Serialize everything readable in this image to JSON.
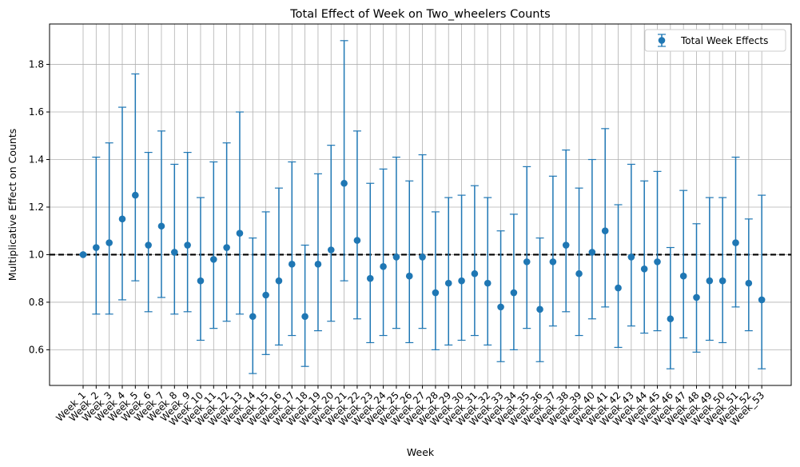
{
  "chart_data": {
    "type": "errorbar",
    "title": "Total Effect of Week on Two_wheelers Counts",
    "xlabel": "Week",
    "ylabel": "Multiplicative Effect on Counts",
    "ylim": [
      0.45,
      1.97
    ],
    "yticks": [
      0.6,
      0.8,
      1.0,
      1.2,
      1.4,
      1.6,
      1.8
    ],
    "ytick_labels": [
      "0.6",
      "0.8",
      "1.0",
      "1.2",
      "1.4",
      "1.6",
      "1.8"
    ],
    "grid": true,
    "legend": {
      "placement": "top-right",
      "entries": [
        "Total Week Effects"
      ]
    },
    "reference_line": {
      "y": 1.0,
      "style": "dashed",
      "color": "#000000"
    },
    "colors": {
      "series": "#1f77b4"
    },
    "categories": [
      "Week_1",
      "Week_2",
      "Week_3",
      "Week_4",
      "Week_5",
      "Week_6",
      "Week_7",
      "Week_8",
      "Week_9",
      "Week_10",
      "Week_11",
      "Week_12",
      "Week_13",
      "Week_14",
      "Week_15",
      "Week_16",
      "Week_17",
      "Week_18",
      "Week_19",
      "Week_20",
      "Week_21",
      "Week_22",
      "Week_23",
      "Week_24",
      "Week_25",
      "Week_26",
      "Week_27",
      "Week_28",
      "Week_29",
      "Week_30",
      "Week_31",
      "Week_32",
      "Week_33",
      "Week_34",
      "Week_35",
      "Week_36",
      "Week_37",
      "Week_38",
      "Week_39",
      "Week_40",
      "Week_41",
      "Week_42",
      "Week_43",
      "Week_44",
      "Week_45",
      "Week_46",
      "Week_47",
      "Week_48",
      "Week_49",
      "Week_50",
      "Week_51",
      "Week_52",
      "Week_53"
    ],
    "series": [
      {
        "name": "Total Week Effects",
        "values": [
          1.0,
          1.03,
          1.05,
          1.15,
          1.25,
          1.04,
          1.12,
          1.01,
          1.04,
          0.89,
          0.98,
          1.03,
          1.09,
          0.74,
          0.83,
          0.89,
          0.96,
          0.74,
          0.96,
          1.02,
          1.3,
          1.06,
          0.9,
          0.95,
          0.99,
          0.91,
          0.99,
          0.84,
          0.88,
          0.89,
          0.92,
          0.88,
          0.78,
          0.84,
          0.97,
          0.77,
          0.97,
          1.04,
          0.92,
          1.01,
          1.1,
          0.86,
          0.99,
          0.94,
          0.97,
          0.73,
          0.91,
          0.82,
          0.89,
          0.89,
          1.05,
          0.88,
          0.81
        ],
        "lower": [
          1.0,
          0.75,
          0.75,
          0.81,
          0.89,
          0.76,
          0.82,
          0.75,
          0.76,
          0.64,
          0.69,
          0.72,
          0.75,
          0.5,
          0.58,
          0.62,
          0.66,
          0.53,
          0.68,
          0.72,
          0.89,
          0.73,
          0.63,
          0.66,
          0.69,
          0.63,
          0.69,
          0.6,
          0.62,
          0.64,
          0.66,
          0.62,
          0.55,
          0.6,
          0.69,
          0.55,
          0.7,
          0.76,
          0.66,
          0.73,
          0.78,
          0.61,
          0.7,
          0.67,
          0.68,
          0.52,
          0.65,
          0.59,
          0.64,
          0.63,
          0.78,
          0.68,
          0.52
        ],
        "upper": [
          1.0,
          1.41,
          1.47,
          1.62,
          1.76,
          1.43,
          1.52,
          1.38,
          1.43,
          1.24,
          1.39,
          1.47,
          1.6,
          1.07,
          1.18,
          1.28,
          1.39,
          1.04,
          1.34,
          1.46,
          1.9,
          1.52,
          1.3,
          1.36,
          1.41,
          1.31,
          1.42,
          1.18,
          1.24,
          1.25,
          1.29,
          1.24,
          1.1,
          1.17,
          1.37,
          1.07,
          1.33,
          1.44,
          1.28,
          1.4,
          1.53,
          1.21,
          1.38,
          1.31,
          1.35,
          1.03,
          1.27,
          1.13,
          1.24,
          1.24,
          1.41,
          1.15,
          1.25
        ]
      }
    ]
  }
}
